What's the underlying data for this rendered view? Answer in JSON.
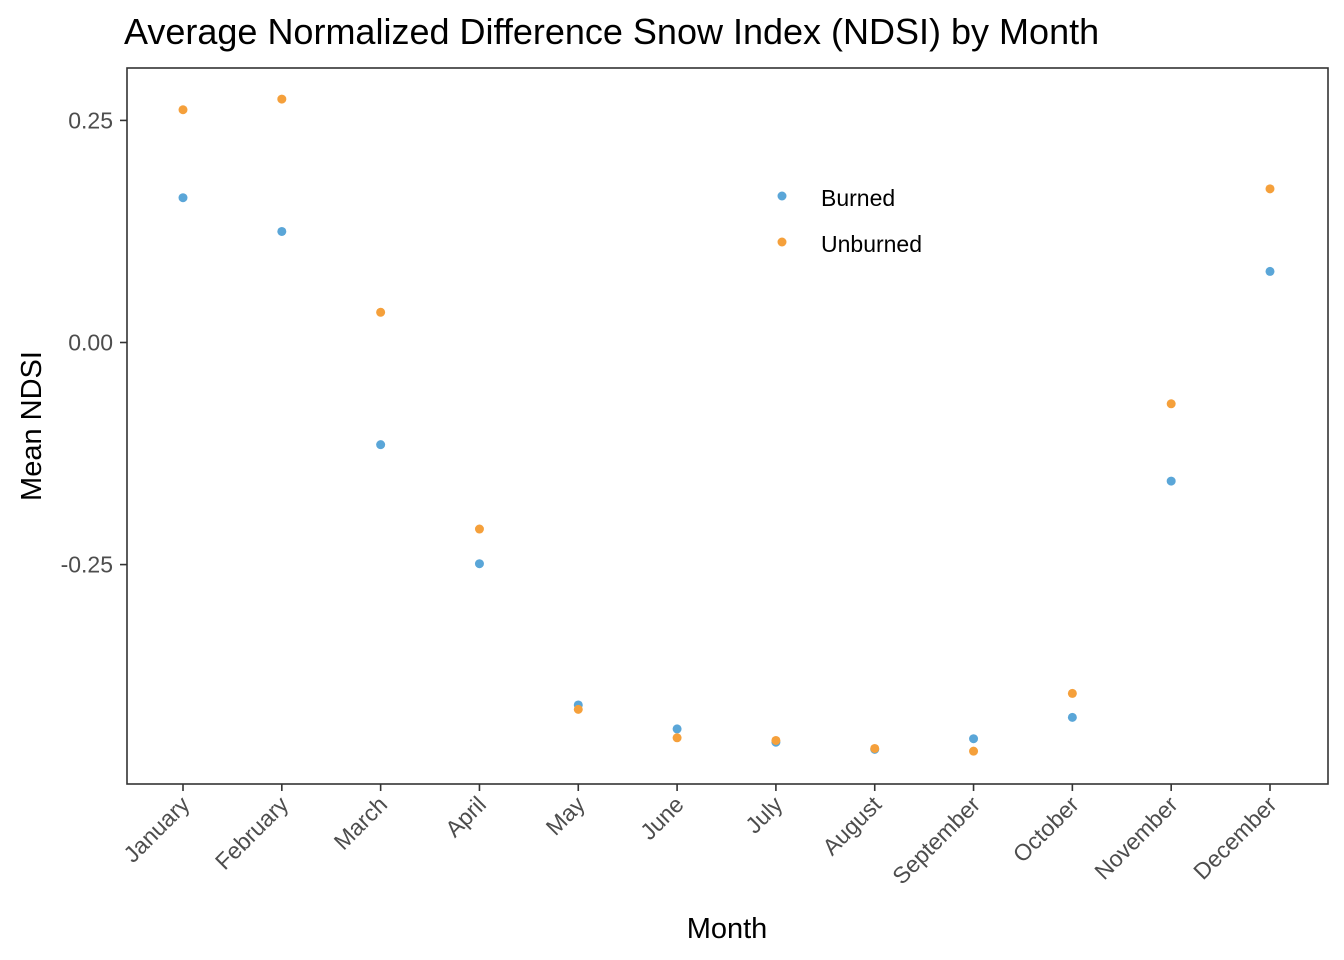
{
  "chart_data": {
    "type": "scatter",
    "title": "Average Normalized Difference Snow Index (NDSI) by Month",
    "xlabel": "Month",
    "ylabel": "Mean NDSI",
    "categories": [
      "January",
      "February",
      "March",
      "April",
      "May",
      "June",
      "July",
      "August",
      "September",
      "October",
      "November",
      "December"
    ],
    "ylim": [
      -0.497,
      0.309
    ],
    "yticks": [
      0.25,
      0.0,
      -0.25
    ],
    "ytick_labels": [
      "0.25",
      "0.00",
      "-0.25"
    ],
    "grid": false,
    "legend_position": "top-right",
    "series": [
      {
        "name": "Burned",
        "color": "#5aa6d8",
        "values": [
          0.163,
          0.125,
          -0.115,
          -0.249,
          -0.408,
          -0.435,
          -0.45,
          -0.458,
          -0.446,
          -0.422,
          -0.156,
          0.08
        ]
      },
      {
        "name": "Unburned",
        "color": "#f5a03b",
        "values": [
          0.262,
          0.274,
          0.034,
          -0.21,
          -0.413,
          -0.445,
          -0.448,
          -0.457,
          -0.46,
          -0.395,
          -0.069,
          0.173
        ]
      }
    ]
  }
}
